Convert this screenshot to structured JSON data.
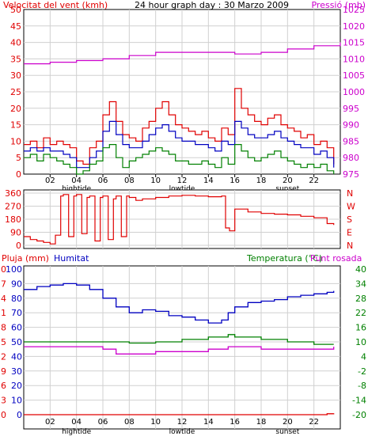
{
  "chart_data": [
    {
      "type": "line",
      "title": "24 hour graph day : 30 Marzo 2009",
      "ylabel_left": "Velocitat del vent (kmh)",
      "ylabel_right": "Pressió (mb)",
      "xlim": [
        0,
        24
      ],
      "x_ticks": [
        2,
        4,
        6,
        8,
        10,
        12,
        14,
        16,
        18,
        20,
        22
      ],
      "x_tick_labels": [
        "02",
        "04",
        "06",
        "08",
        "10",
        "12",
        "14",
        "16",
        "18",
        "20",
        "22"
      ],
      "annotations": [
        {
          "label": "hightide",
          "x": 4
        },
        {
          "label": "lowtide",
          "x": 12
        },
        {
          "label": "sunset",
          "x": 20
        }
      ],
      "ylim_left": [
        0,
        50
      ],
      "y_ticks_left": [
        0,
        5,
        10,
        15,
        20,
        25,
        30,
        35,
        40,
        45,
        50
      ],
      "ylim_right": [
        975,
        1025
      ],
      "y_ticks_right": [
        975,
        980,
        985,
        990,
        995,
        1000,
        1005,
        1010,
        1015,
        1020,
        1025
      ],
      "grid": true,
      "colors": {
        "gust": "#e00000",
        "avg": "#0000c0",
        "gust_low": "#008000",
        "pressure": "#cc00cc"
      },
      "series": [
        {
          "axis": "left",
          "color": "#e00000",
          "x": [
            0,
            0.5,
            1,
            1.5,
            2,
            2.5,
            3,
            3.5,
            4,
            4.5,
            5,
            5.5,
            6,
            6.5,
            7,
            7.5,
            8,
            8.5,
            9,
            9.5,
            10,
            10.5,
            11,
            11.5,
            12,
            12.5,
            13,
            13.5,
            14,
            14.5,
            15,
            15.5,
            16,
            16.5,
            17,
            17.5,
            18,
            18.5,
            19,
            19.5,
            20,
            20.5,
            21,
            21.5,
            22,
            22.5,
            23,
            23.5
          ],
          "values": [
            9,
            10,
            8,
            11,
            9,
            10,
            9,
            8,
            4,
            3,
            8,
            10,
            18,
            22,
            16,
            12,
            11,
            10,
            14,
            16,
            20,
            22,
            18,
            15,
            14,
            13,
            12,
            13,
            11,
            10,
            14,
            12,
            26,
            20,
            18,
            16,
            15,
            17,
            18,
            15,
            14,
            13,
            11,
            12,
            9,
            10,
            8,
            3
          ]
        },
        {
          "axis": "left",
          "color": "#0000c0",
          "x": [
            0,
            0.5,
            1,
            1.5,
            2,
            2.5,
            3,
            3.5,
            4,
            4.5,
            5,
            5.5,
            6,
            6.5,
            7,
            7.5,
            8,
            8.5,
            9,
            9.5,
            10,
            10.5,
            11,
            11.5,
            12,
            12.5,
            13,
            13.5,
            14,
            14.5,
            15,
            15.5,
            16,
            16.5,
            17,
            17.5,
            18,
            18.5,
            19,
            19.5,
            20,
            20.5,
            21,
            21.5,
            22,
            22.5,
            23,
            23.5
          ],
          "values": [
            7,
            8,
            7,
            8,
            7,
            7,
            6,
            5,
            2,
            2,
            5,
            7,
            13,
            16,
            12,
            9,
            8,
            8,
            10,
            12,
            14,
            15,
            13,
            11,
            10,
            10,
            9,
            9,
            8,
            7,
            10,
            9,
            16,
            14,
            12,
            11,
            11,
            12,
            13,
            11,
            10,
            9,
            8,
            8,
            6,
            7,
            5,
            2
          ]
        },
        {
          "axis": "left",
          "color": "#008000",
          "x": [
            0,
            0.5,
            1,
            1.5,
            2,
            2.5,
            3,
            3.5,
            4,
            4.5,
            5,
            5.5,
            6,
            6.5,
            7,
            7.5,
            8,
            8.5,
            9,
            9.5,
            10,
            10.5,
            11,
            11.5,
            12,
            12.5,
            13,
            13.5,
            14,
            14.5,
            15,
            15.5,
            16,
            16.5,
            17,
            17.5,
            18,
            18.5,
            19,
            19.5,
            20,
            20.5,
            21,
            21.5,
            22,
            22.5,
            23,
            23.5
          ],
          "values": [
            5,
            6,
            4,
            6,
            5,
            4,
            3,
            2,
            0,
            1,
            3,
            4,
            8,
            9,
            5,
            2,
            4,
            5,
            6,
            7,
            8,
            7,
            6,
            4,
            4,
            3,
            3,
            4,
            3,
            2,
            5,
            3,
            9,
            7,
            5,
            4,
            5,
            6,
            7,
            5,
            4,
            3,
            2,
            3,
            2,
            3,
            1,
            0
          ]
        },
        {
          "axis": "right",
          "color": "#cc00cc",
          "x": [
            0,
            2,
            4,
            6,
            8,
            10,
            12,
            14,
            16,
            18,
            20,
            22,
            24
          ],
          "values": [
            1008.5,
            1009,
            1009.5,
            1010,
            1011,
            1012,
            1012,
            1012,
            1011.5,
            1012,
            1013,
            1014,
            1015
          ]
        }
      ]
    },
    {
      "type": "line",
      "ylim": [
        0,
        360
      ],
      "y_ticks": [
        0,
        90,
        180,
        270,
        360
      ],
      "right_labels": [
        "N",
        "W",
        "S",
        "E",
        "N"
      ],
      "xlim": [
        0,
        24
      ],
      "x_ticks": [
        2,
        4,
        6,
        8,
        10,
        12,
        14,
        16,
        18,
        20,
        22
      ],
      "grid": true,
      "series": [
        {
          "color": "#e00000",
          "x": [
            0,
            0.5,
            1,
            1.5,
            2,
            2.4,
            2.8,
            3,
            3.4,
            3.8,
            4,
            4.4,
            4.8,
            5,
            5.4,
            5.8,
            6,
            6.4,
            6.8,
            7,
            7.4,
            7.8,
            8,
            8.5,
            9,
            10,
            11,
            12,
            13,
            14,
            15,
            15.3,
            15.6,
            16,
            17,
            18,
            19,
            20,
            21,
            22,
            23,
            23.5
          ],
          "values": [
            60,
            40,
            30,
            20,
            10,
            70,
            340,
            350,
            60,
            340,
            350,
            80,
            330,
            340,
            30,
            330,
            340,
            40,
            320,
            340,
            60,
            340,
            330,
            310,
            320,
            330,
            340,
            345,
            340,
            335,
            340,
            120,
            100,
            250,
            230,
            220,
            215,
            210,
            200,
            190,
            150,
            140
          ]
        }
      ]
    },
    {
      "type": "line",
      "legend": [
        "Pluja (mm)",
        "Humitat",
        "Temperatura (°C)",
        "Punt rosada"
      ],
      "xlim": [
        0,
        24
      ],
      "x_ticks": [
        2,
        4,
        6,
        8,
        10,
        12,
        14,
        16,
        18,
        20,
        22
      ],
      "x_tick_labels": [
        "02",
        "04",
        "06",
        "08",
        "10",
        "12",
        "14",
        "16",
        "18",
        "20",
        "22"
      ],
      "annotations": [
        {
          "label": "hightide",
          "x": 4
        },
        {
          "label": "lowtide",
          "x": 12
        },
        {
          "label": "sunset",
          "x": 20
        }
      ],
      "axis_pluja": {
        "ylim": [
          0,
          30
        ],
        "ticks": [
          0,
          3,
          6,
          9,
          12,
          15,
          18,
          21,
          24,
          27,
          30
        ],
        "color": "#e00000"
      },
      "axis_humitat": {
        "ylim": [
          0,
          100
        ],
        "ticks": [
          0,
          10,
          20,
          30,
          40,
          50,
          60,
          70,
          80,
          90,
          100
        ],
        "color": "#0000c0"
      },
      "axis_temp": {
        "ylim": [
          -20,
          40
        ],
        "ticks": [
          -20,
          -14,
          -8,
          -2,
          4,
          10,
          16,
          22,
          28,
          34,
          40
        ],
        "color": "#008000"
      },
      "grid": true,
      "series": [
        {
          "name": "Pluja (mm)",
          "axis": "pluja",
          "color": "#e00000",
          "x": [
            0,
            2,
            4,
            6,
            8,
            10,
            12,
            14,
            16,
            18,
            20,
            22,
            23,
            23.5
          ],
          "values": [
            0,
            0,
            0,
            0,
            0,
            0,
            0,
            0,
            0,
            0,
            0,
            0,
            0.2,
            0.3
          ]
        },
        {
          "name": "Humitat",
          "axis": "humitat",
          "color": "#0000c0",
          "x": [
            0,
            1,
            2,
            3,
            4,
            5,
            6,
            7,
            8,
            9,
            10,
            11,
            12,
            13,
            14,
            15,
            15.5,
            16,
            17,
            18,
            19,
            20,
            21,
            22,
            23,
            23.5
          ],
          "values": [
            86,
            88,
            89,
            90,
            89,
            86,
            80,
            74,
            70,
            72,
            71,
            68,
            67,
            65,
            63,
            65,
            70,
            74,
            77,
            78,
            79,
            81,
            82,
            83,
            84,
            85
          ]
        },
        {
          "name": "Temperatura (°C)",
          "axis": "temp",
          "color": "#008000",
          "x": [
            0,
            2,
            4,
            6,
            8,
            10,
            12,
            14,
            15.5,
            16,
            18,
            20,
            22,
            23.5
          ],
          "values": [
            10,
            10,
            10,
            10,
            9.5,
            10,
            11,
            12,
            13,
            12,
            11,
            10,
            9,
            9
          ]
        },
        {
          "name": "Punt rosada",
          "axis": "temp",
          "color": "#cc00cc",
          "x": [
            0,
            2,
            4,
            6,
            7,
            8,
            10,
            12,
            14,
            15.5,
            16,
            18,
            20,
            22,
            23.5
          ],
          "values": [
            8,
            8,
            8,
            7,
            5,
            5,
            6,
            6,
            7,
            8,
            8,
            7,
            7,
            7,
            8
          ]
        }
      ]
    }
  ]
}
